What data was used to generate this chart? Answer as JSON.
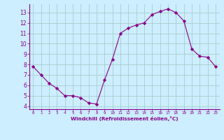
{
  "x": [
    0,
    1,
    2,
    3,
    4,
    5,
    6,
    7,
    8,
    9,
    10,
    11,
    12,
    13,
    14,
    15,
    16,
    17,
    18,
    19,
    20,
    21,
    22,
    23
  ],
  "y": [
    7.8,
    7.0,
    6.2,
    5.7,
    5.0,
    5.0,
    4.8,
    4.3,
    4.2,
    6.5,
    8.5,
    11.0,
    11.5,
    11.8,
    12.0,
    12.8,
    13.1,
    13.35,
    13.0,
    12.2,
    9.5,
    8.8,
    8.7,
    7.8
  ],
  "line_color": "#880088",
  "marker": "D",
  "marker_size": 2.2,
  "bg_color": "#cceeff",
  "grid_color": "#aacccc",
  "xlabel": "Windchill (Refroidissement éolien,°C)",
  "xlabel_color": "#880088",
  "xlim": [
    -0.5,
    23.5
  ],
  "ylim": [
    3.7,
    13.8
  ],
  "yticks": [
    4,
    5,
    6,
    7,
    8,
    9,
    10,
    11,
    12,
    13
  ],
  "xticks": [
    0,
    1,
    2,
    3,
    4,
    5,
    6,
    7,
    8,
    9,
    10,
    11,
    12,
    13,
    14,
    15,
    16,
    17,
    18,
    19,
    20,
    21,
    22,
    23
  ],
  "tick_color": "#880088",
  "spine_color": "#880088"
}
